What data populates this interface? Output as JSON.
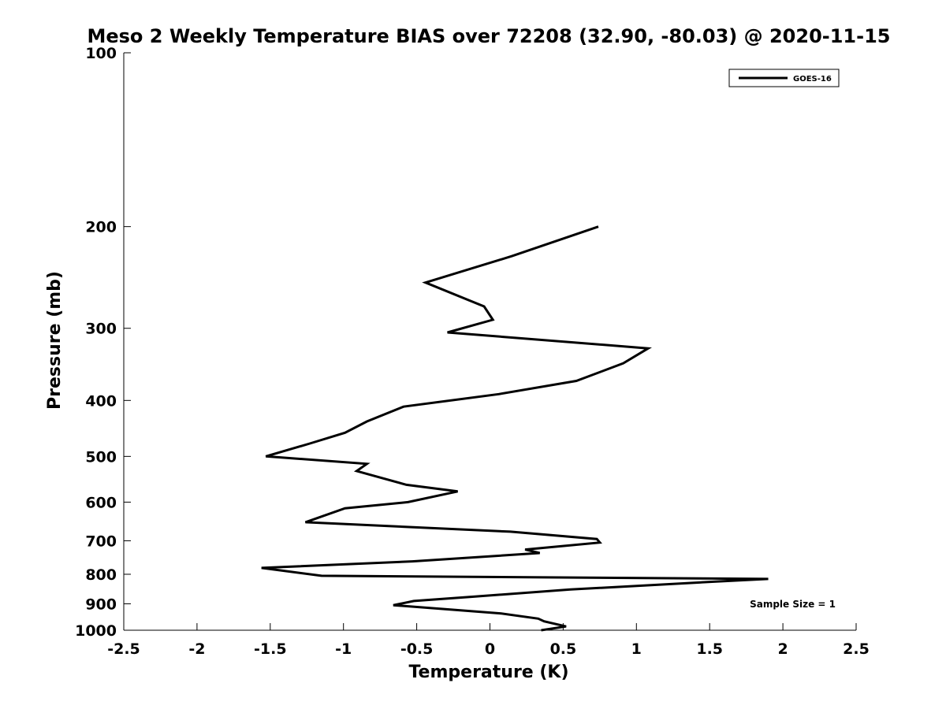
{
  "chart_data": {
    "type": "line",
    "title": "Meso 2 Weekly Temperature BIAS over 72208 (32.90, -80.03) @ 2020-11-15",
    "xlabel": "Temperature (K)",
    "ylabel": "Pressure (mb)",
    "xlim": [
      -2.5,
      2.5
    ],
    "ylim": [
      1000,
      100
    ],
    "y_scale": "log",
    "grid": false,
    "x_ticks": [
      -2.5,
      -2,
      -1.5,
      -1,
      -0.5,
      0,
      0.5,
      1,
      1.5,
      2,
      2.5
    ],
    "x_tick_labels": [
      "-2.5",
      "-2",
      "-1.5",
      "-1",
      "-0.5",
      "0",
      "0.5",
      "1",
      "1.5",
      "2",
      "2.5"
    ],
    "y_ticks": [
      100,
      200,
      300,
      400,
      500,
      600,
      700,
      800,
      900,
      1000
    ],
    "y_tick_labels": [
      "100",
      "200",
      "300",
      "400",
      "500",
      "600",
      "700",
      "800",
      "900",
      "1000"
    ],
    "legend": {
      "placement": "top-right",
      "entries": [
        "GOES-16"
      ]
    },
    "annotation": "Sample Size = 1",
    "series": [
      {
        "name": "GOES-16",
        "color": "#000000",
        "x": [
          0.74,
          0.15,
          -0.44,
          -0.04,
          0.02,
          -0.29,
          1.08,
          0.91,
          0.59,
          0.06,
          -0.59,
          -0.84,
          -0.99,
          -1.23,
          -1.53,
          -0.84,
          -0.91,
          -0.57,
          -0.22,
          -0.56,
          -0.99,
          -1.26,
          0.14,
          0.73,
          0.75,
          0.24,
          0.34,
          -0.53,
          -1.56,
          -1.15,
          1.9,
          1.49,
          0.55,
          -0.12,
          -0.52,
          -0.66,
          0.07,
          0.33,
          0.37,
          0.52,
          0.35
        ],
        "y": [
          200,
          225,
          250,
          275,
          290,
          305,
          325,
          345,
          370,
          390,
          410,
          435,
          455,
          475,
          500,
          515,
          530,
          560,
          575,
          600,
          615,
          650,
          675,
          695,
          705,
          725,
          735,
          760,
          780,
          805,
          815,
          825,
          850,
          875,
          890,
          905,
          935,
          955,
          965,
          985,
          1000
        ]
      }
    ]
  }
}
